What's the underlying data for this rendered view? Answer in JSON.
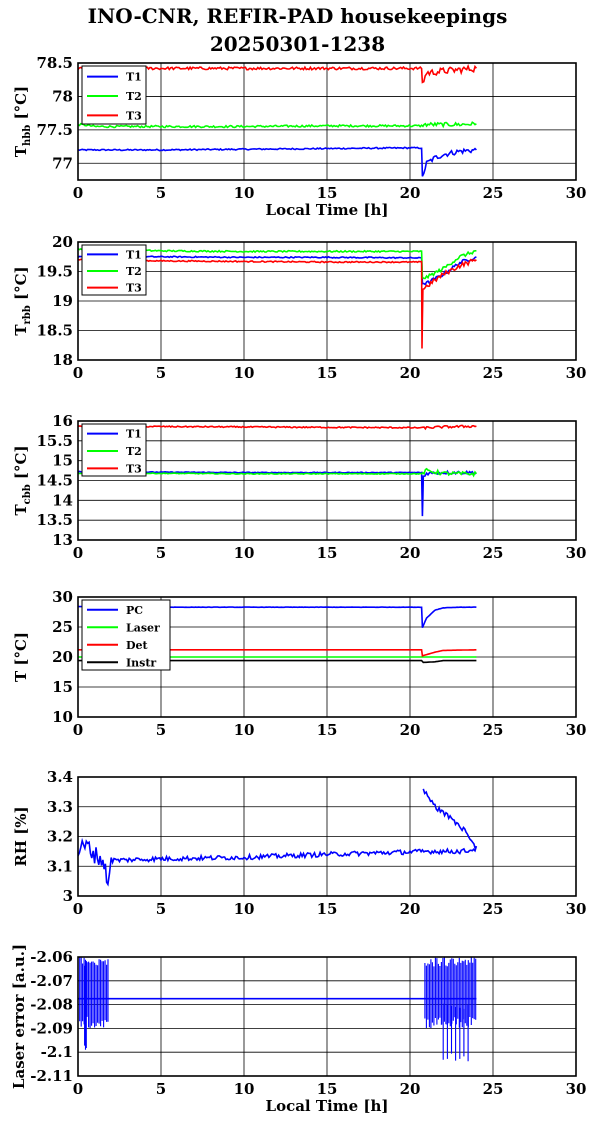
{
  "title_line1": "INO-CNR, REFIR-PAD housekeepings",
  "title_line2": "20250301-1238",
  "colors": {
    "blue": "#0000ff",
    "green": "#00ff00",
    "red": "#ff0000",
    "black": "#000000"
  },
  "chart_data": [
    {
      "type": "line",
      "ylabel": "T",
      "ylabel_sub": "hbb",
      "ylabel_unit": "[°C]",
      "xlabel": "Local Time [h]",
      "xlim": [
        0,
        30
      ],
      "ylim": [
        76.75,
        78.5
      ],
      "xticks": [
        0,
        5,
        10,
        15,
        20,
        25,
        30
      ],
      "yticks": [
        77,
        77.5,
        78,
        78.5
      ],
      "legend": "top-left",
      "grid": true,
      "series": [
        {
          "name": "T1",
          "color": "blue",
          "x": [
            0,
            5,
            10,
            15,
            20,
            20.7,
            20.75,
            21,
            21.5,
            22,
            23,
            24
          ],
          "y": [
            77.2,
            77.2,
            77.21,
            77.22,
            77.23,
            77.23,
            76.8,
            77.0,
            77.08,
            77.13,
            77.18,
            77.2
          ],
          "noise": 0.01,
          "noise_tail": [
            20.8,
            24,
            0.04
          ]
        },
        {
          "name": "T2",
          "color": "green",
          "x": [
            0,
            0.5,
            1,
            5,
            10,
            15,
            20.7,
            21,
            22,
            23,
            24
          ],
          "y": [
            77.58,
            77.57,
            77.55,
            77.55,
            77.55,
            77.56,
            77.56,
            77.58,
            77.58,
            77.58,
            77.59
          ],
          "noise": 0.015,
          "noise_tail": [
            20.8,
            24,
            0.03
          ]
        },
        {
          "name": "T3",
          "color": "red",
          "x": [
            0,
            1,
            5,
            10,
            15,
            20.7,
            20.75,
            21,
            22,
            23,
            24
          ],
          "y": [
            78.42,
            78.42,
            78.42,
            78.42,
            78.42,
            78.42,
            78.2,
            78.35,
            78.38,
            78.4,
            78.42
          ],
          "noise": 0.02,
          "noise_tail": [
            20.8,
            24,
            0.05
          ]
        }
      ]
    },
    {
      "type": "line",
      "ylabel": "T",
      "ylabel_sub": "rbb",
      "ylabel_unit": "[°C]",
      "xlabel": "",
      "xlim": [
        0,
        30
      ],
      "ylim": [
        18,
        20
      ],
      "xticks": [
        0,
        5,
        10,
        15,
        20,
        25,
        30
      ],
      "yticks": [
        18,
        18.5,
        19,
        19.5,
        20
      ],
      "legend": "top-left",
      "grid": true,
      "series": [
        {
          "name": "T1",
          "color": "blue",
          "x": [
            0,
            5,
            10,
            15,
            20.7,
            20.75,
            21,
            22,
            23,
            24
          ],
          "y": [
            19.75,
            19.75,
            19.74,
            19.74,
            19.73,
            19.3,
            19.3,
            19.45,
            19.65,
            19.75
          ],
          "noise": 0.01,
          "noise_tail": [
            20.8,
            24,
            0.03
          ]
        },
        {
          "name": "T2",
          "color": "green",
          "x": [
            0,
            5,
            10,
            15,
            20.7,
            20.75,
            21,
            22,
            23,
            24
          ],
          "y": [
            19.88,
            19.85,
            19.84,
            19.84,
            19.84,
            19.4,
            19.4,
            19.55,
            19.75,
            19.85
          ],
          "noise": 0.012,
          "noise_tail": [
            20.8,
            24,
            0.03
          ]
        },
        {
          "name": "T3",
          "color": "red",
          "x": [
            0,
            5,
            10,
            15,
            20.7,
            20.72,
            20.78,
            21,
            22,
            23,
            24
          ],
          "y": [
            19.7,
            19.68,
            19.67,
            19.66,
            19.66,
            18.2,
            19.2,
            19.25,
            19.45,
            19.6,
            19.7
          ],
          "noise": 0.01,
          "noise_tail": [
            20.8,
            24,
            0.04
          ]
        }
      ]
    },
    {
      "type": "line",
      "ylabel": "T",
      "ylabel_sub": "cbb",
      "ylabel_unit": "[°C]",
      "xlabel": "",
      "xlim": [
        0,
        30
      ],
      "ylim": [
        13,
        16
      ],
      "xticks": [
        0,
        5,
        10,
        15,
        20,
        25,
        30
      ],
      "yticks": [
        13,
        13.5,
        14,
        14.5,
        15,
        15.5,
        16
      ],
      "legend": "top-left",
      "grid": true,
      "series": [
        {
          "name": "T1",
          "color": "blue",
          "x": [
            0,
            5,
            10,
            15,
            20.7,
            20.75,
            20.8,
            21,
            22,
            23,
            24
          ],
          "y": [
            14.72,
            14.71,
            14.7,
            14.7,
            14.7,
            13.6,
            14.6,
            14.68,
            14.7,
            14.7,
            14.7
          ],
          "noise": 0.01,
          "noise_tail": [
            20.8,
            24,
            0.04
          ]
        },
        {
          "name": "T2",
          "color": "green",
          "x": [
            0,
            5,
            10,
            15,
            20.7,
            21,
            22,
            23,
            24
          ],
          "y": [
            14.68,
            14.68,
            14.67,
            14.67,
            14.67,
            14.75,
            14.68,
            14.67,
            14.67
          ],
          "noise": 0.01,
          "noise_tail": [
            20.8,
            24,
            0.05
          ]
        },
        {
          "name": "T3",
          "color": "red",
          "x": [
            0,
            5,
            10,
            15,
            20.7,
            21,
            22,
            23,
            24
          ],
          "y": [
            15.87,
            15.86,
            15.85,
            15.84,
            15.83,
            15.83,
            15.85,
            15.86,
            15.87
          ],
          "noise": 0.015,
          "noise_tail": [
            20.8,
            24,
            0.03
          ]
        }
      ]
    },
    {
      "type": "line",
      "ylabel": "T [°C]",
      "ylabel_sub": "",
      "ylabel_unit": "",
      "xlabel": "",
      "xlim": [
        0,
        30
      ],
      "ylim": [
        10,
        30
      ],
      "xticks": [
        0,
        5,
        10,
        15,
        20,
        25,
        30
      ],
      "yticks": [
        10,
        15,
        20,
        25,
        30
      ],
      "legend": "top-left",
      "grid": true,
      "series": [
        {
          "name": "PC",
          "color": "blue",
          "x": [
            0,
            5,
            10,
            15,
            20.7,
            20.75,
            21,
            21.5,
            22,
            23,
            24
          ],
          "y": [
            28.4,
            28.3,
            28.3,
            28.3,
            28.3,
            24.9,
            26.5,
            27.8,
            28.2,
            28.3,
            28.3
          ],
          "noise": 0.02,
          "noise_tail": [
            0,
            0,
            0
          ]
        },
        {
          "name": "Laser",
          "color": "green",
          "x": [
            0,
            10,
            20.7,
            24
          ],
          "y": [
            20.0,
            20.0,
            20.0,
            20.0
          ],
          "noise": 0,
          "noise_tail": [
            0,
            0,
            0
          ]
        },
        {
          "name": "Det",
          "color": "red",
          "x": [
            0,
            10,
            20.7,
            20.75,
            21.5,
            22,
            24
          ],
          "y": [
            21.2,
            21.2,
            21.2,
            20.2,
            20.8,
            21.1,
            21.2
          ],
          "noise": 0,
          "noise_tail": [
            0,
            0,
            0
          ]
        },
        {
          "name": "Instr",
          "color": "black",
          "x": [
            0,
            10,
            20.7,
            20.8,
            21.5,
            22,
            24
          ],
          "y": [
            19.4,
            19.4,
            19.4,
            19.1,
            19.2,
            19.4,
            19.4
          ],
          "noise": 0,
          "noise_tail": [
            0,
            0,
            0
          ]
        }
      ]
    },
    {
      "type": "line",
      "ylabel": "RH [%]",
      "ylabel_sub": "",
      "ylabel_unit": "",
      "xlabel": "",
      "xlim": [
        0,
        30
      ],
      "ylim": [
        3,
        3.4
      ],
      "xticks": [
        0,
        5,
        10,
        15,
        20,
        25,
        30
      ],
      "yticks": [
        3,
        3.1,
        3.2,
        3.3,
        3.4
      ],
      "legend": "none",
      "grid": true,
      "series": [
        {
          "name": "",
          "color": "blue",
          "x": [
            0,
            0.5,
            1,
            1.5,
            1.8,
            2,
            5,
            10,
            15,
            20,
            21,
            22,
            23,
            23.5,
            24,
            23.7,
            23.3,
            22.5,
            21.5,
            20.8
          ],
          "y": [
            3.15,
            3.17,
            3.14,
            3.12,
            3.05,
            3.12,
            3.125,
            3.13,
            3.14,
            3.148,
            3.15,
            3.15,
            3.15,
            3.152,
            3.16,
            3.18,
            3.22,
            3.26,
            3.3,
            3.36
          ],
          "noise": 0.008,
          "noise_tail": [
            0,
            2,
            0.03
          ]
        }
      ]
    },
    {
      "type": "line",
      "ylabel": "Laser error [a.u.]",
      "ylabel_sub": "",
      "ylabel_unit": "",
      "xlabel": "Local Time [h]",
      "xlim": [
        0,
        30
      ],
      "ylim": [
        -2.11,
        -2.06
      ],
      "xticks": [
        0,
        5,
        10,
        15,
        20,
        25,
        30
      ],
      "yticks": [
        -2.06,
        -2.07,
        -2.08,
        -2.09,
        -2.1,
        -2.11
      ],
      "legend": "none",
      "grid": true,
      "series": [
        {
          "name": "",
          "color": "blue",
          "x": [
            0,
            2,
            10,
            20.8,
            24
          ],
          "y": [
            -2.0775,
            -2.0775,
            -2.0775,
            -2.0775,
            -2.0775
          ],
          "noise": 0,
          "noise_tail": [
            0,
            0,
            0
          ],
          "spikes": [
            [
              0.1,
              1.9,
              -2.06,
              -2.09,
              0.09
            ],
            [
              0.4,
              0.5,
              -2.06,
              -2.1,
              0.05
            ],
            [
              20.9,
              24,
              -2.06,
              -2.09,
              0.09
            ],
            [
              22,
              23.6,
              -2.078,
              -2.105,
              0.25
            ]
          ]
        }
      ]
    }
  ]
}
